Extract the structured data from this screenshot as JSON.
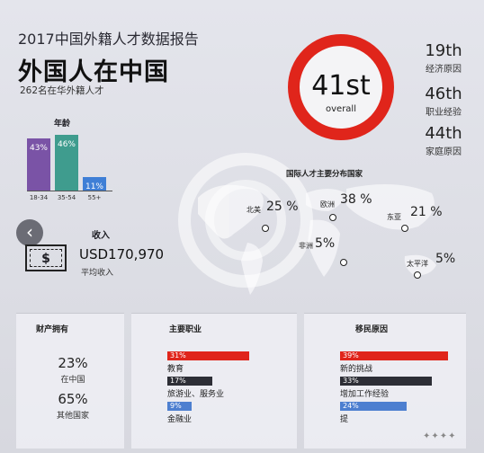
{
  "header": {
    "report_title": "2017中国外籍人才数据报告",
    "headline": "外国人在中国",
    "subtitle": "262名在华外籍人才"
  },
  "ranking": {
    "overall_value": "41st",
    "overall_label": "overall",
    "items": [
      {
        "value": "19th",
        "label": "经济原因"
      },
      {
        "value": "46th",
        "label": "职业经验"
      },
      {
        "value": "44th",
        "label": "家庭原因"
      }
    ]
  },
  "age": {
    "title": "年龄",
    "bars": [
      {
        "label": "18-34",
        "value": "43%",
        "pct": 43,
        "color": "#7a53a6"
      },
      {
        "label": "35-54",
        "value": "46%",
        "pct": 46,
        "color": "#3f9c8e"
      },
      {
        "label": "55+",
        "value": "11%",
        "pct": 11,
        "color": "#3f7fd6"
      }
    ]
  },
  "nav": {
    "prev_glyph": "‹"
  },
  "income": {
    "title": "收入",
    "value": "USD170,970",
    "label": "平均收入",
    "icon_symbol": "$"
  },
  "map": {
    "title": "国际人才主要分布国家",
    "regions": [
      {
        "name": "北美",
        "pct": "25 %"
      },
      {
        "name": "欧洲",
        "pct": "38 %"
      },
      {
        "name": "东亚",
        "pct": "21 %"
      },
      {
        "name": "非洲",
        "pct": "5%"
      },
      {
        "name": "太平洋",
        "pct": "5%"
      }
    ]
  },
  "assets": {
    "title": "财产拥有",
    "items": [
      {
        "pct": "23%",
        "label": "在中国"
      },
      {
        "pct": "65%",
        "label": "其他国家"
      }
    ]
  },
  "occupation": {
    "title": "主要职业",
    "items": [
      {
        "pct": "31%",
        "value": 31,
        "label": "教育",
        "color": "#e0251b"
      },
      {
        "pct": "17%",
        "value": 17,
        "label": "旅游业、服务业",
        "color": "#2d2e36"
      },
      {
        "pct": "9%",
        "value": 9,
        "label": "金融业",
        "color": "#4d7fd0"
      }
    ]
  },
  "migration": {
    "title": "移民原因",
    "items": [
      {
        "pct": "39%",
        "value": 39,
        "label": "新的挑战",
        "color": "#e0251b"
      },
      {
        "pct": "33%",
        "value": 33,
        "label": "增加工作经验",
        "color": "#2d2e36"
      },
      {
        "pct": "24%",
        "value": 24,
        "label": "提",
        "color": "#4d7fd0"
      }
    ]
  }
}
